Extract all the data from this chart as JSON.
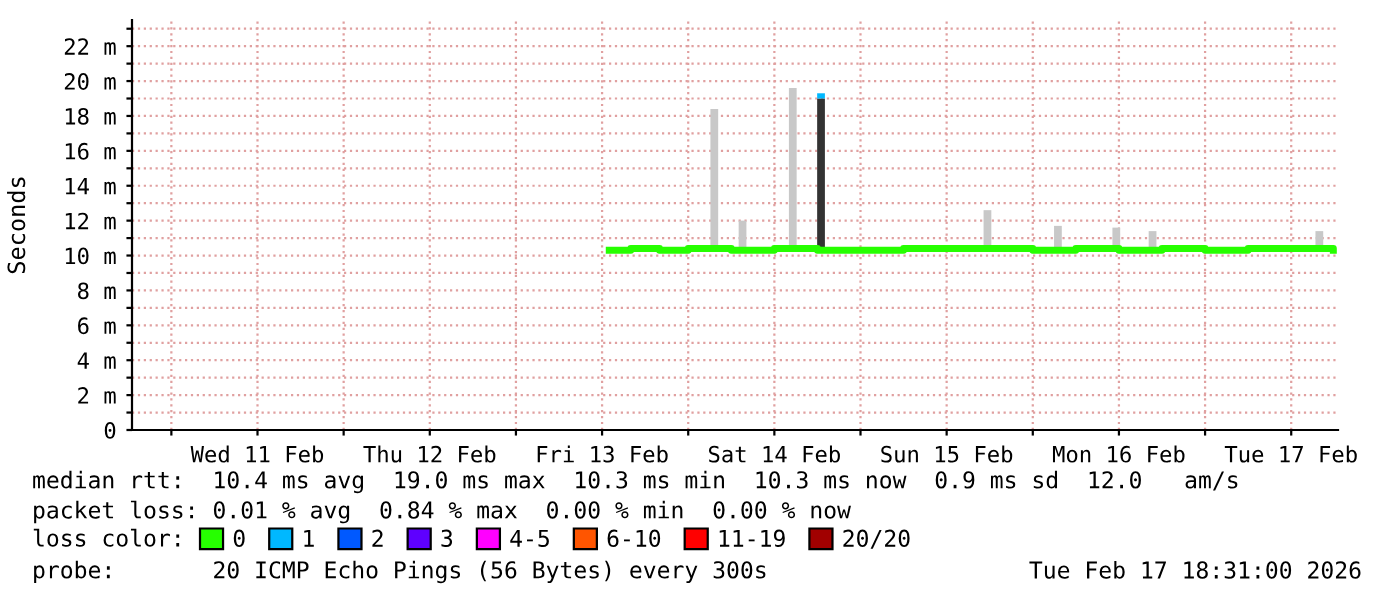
{
  "chart_data": {
    "type": "step",
    "ylabel": "Seconds",
    "legend_title": "loss color:",
    "legend": "bottom",
    "grid": true,
    "xlim": [
      "2026-02-10T18:31",
      "2026-02-17T18:31"
    ],
    "xticks": [
      {
        "value": "2026-02-11T00:00",
        "label": null
      },
      {
        "value": "2026-02-11T12:00",
        "label": "Wed 11 Feb"
      },
      {
        "value": "2026-02-12T00:00",
        "label": null
      },
      {
        "value": "2026-02-12T12:00",
        "label": "Thu 12 Feb"
      },
      {
        "value": "2026-02-13T00:00",
        "label": null
      },
      {
        "value": "2026-02-13T12:00",
        "label": "Fri 13 Feb"
      },
      {
        "value": "2026-02-14T00:00",
        "label": null
      },
      {
        "value": "2026-02-14T12:00",
        "label": "Sat 14 Feb"
      },
      {
        "value": "2026-02-15T00:00",
        "label": null
      },
      {
        "value": "2026-02-15T12:00",
        "label": "Sun 15 Feb"
      },
      {
        "value": "2026-02-16T00:00",
        "label": null
      },
      {
        "value": "2026-02-16T12:00",
        "label": "Mon 16 Feb"
      },
      {
        "value": "2026-02-17T00:00",
        "label": null
      },
      {
        "value": "2026-02-17T12:00",
        "label": "Tue 17 Feb"
      }
    ],
    "ylim": [
      0,
      23.5
    ],
    "yticks": [
      0,
      {
        "value": 1,
        "label": null
      },
      {
        "value": 2,
        "label": "2 m"
      },
      {
        "value": 3,
        "label": null
      },
      {
        "value": 4,
        "label": "4 m"
      },
      {
        "value": 5,
        "label": null
      },
      {
        "value": 6,
        "label": "6 m"
      },
      {
        "value": 7,
        "label": null
      },
      {
        "value": 8,
        "label": "8 m"
      },
      {
        "value": 9,
        "label": null
      },
      {
        "value": 10,
        "label": "10 m"
      },
      {
        "value": 11,
        "label": null
      },
      {
        "value": 12,
        "label": "12 m"
      },
      {
        "value": 13,
        "label": null
      },
      {
        "value": 14,
        "label": "14 m"
      },
      {
        "value": 15,
        "label": null
      },
      {
        "value": 16,
        "label": "16 m"
      },
      {
        "value": 17,
        "label": null
      },
      {
        "value": 18,
        "label": "18 m"
      },
      {
        "value": 19,
        "label": null
      },
      {
        "value": 20,
        "label": "20 m"
      },
      {
        "value": 21,
        "label": null
      },
      {
        "value": 22,
        "label": "22 m"
      },
      {
        "value": 23,
        "label": null
      }
    ],
    "series": [
      {
        "type": "bar",
        "color": "#c8c8c8",
        "x": [
          "2026-02-14T03:38",
          "2026-02-14T07:34",
          "2026-02-14T14:34",
          "2026-02-15T17:41",
          "2026-02-16T03:30",
          "2026-02-16T11:38",
          "2026-02-16T16:41",
          "2026-02-17T15:55"
        ],
        "base": [
          10.4,
          10.4,
          10.4,
          10.4,
          10.4,
          10.4,
          10.4,
          10.4
        ],
        "values": [
          8.0,
          1.6,
          9.2,
          2.2,
          1.3,
          1.2,
          1.0,
          1.0
        ]
      },
      {
        "type": "bar",
        "color": "#333333",
        "x": [
          "2026-02-14T18:30"
        ],
        "base": [
          10.4
        ],
        "values": [
          8.6
        ]
      },
      {
        "name": "0",
        "color": "#26ff00",
        "x": [
          "2026-02-13T13:00",
          "2026-02-13T16:00",
          "2026-02-13T20:00",
          "2026-02-14T00:00",
          "2026-02-14T06:00",
          "2026-02-14T12:00",
          "2026-02-14T18:00",
          "2026-02-15T00:00",
          "2026-02-15T06:00",
          "2026-02-15T12:00",
          "2026-02-15T18:00",
          "2026-02-16T00:00",
          "2026-02-16T06:00",
          "2026-02-16T12:00",
          "2026-02-16T18:00",
          "2026-02-17T00:00",
          "2026-02-17T06:00",
          "2026-02-17T12:00",
          "2026-02-17T17:52"
        ],
        "values": [
          10.3,
          10.4,
          10.3,
          10.4,
          10.3,
          10.4,
          10.3,
          10.3,
          10.4,
          10.4,
          10.4,
          10.3,
          10.4,
          10.3,
          10.4,
          10.3,
          10.4,
          10.4,
          10.3
        ]
      },
      {
        "type": "bar",
        "name": "1",
        "color": "#00b8ff",
        "x": [
          "2026-02-14T18:30"
        ],
        "base": [
          19.0
        ],
        "values": [
          0.3
        ]
      },
      {
        "type": "bar",
        "name": "2",
        "color": "#0059ff"
      },
      {
        "type": "bar",
        "name": "3",
        "color": "#5e00ff"
      },
      {
        "type": "bar",
        "name": "4-5",
        "color": "#ff00ff"
      },
      {
        "type": "bar",
        "name": "6-10",
        "color": "#ff5500"
      },
      {
        "type": "bar",
        "name": "11-19",
        "color": "#ff0000"
      },
      {
        "type": "bar",
        "name": "20/20",
        "color": "#a10000"
      }
    ],
    "annotations": [
      "median rtt:  10.4 ms avg  19.0 ms max  10.3 ms min  10.3 ms now  0.9 ms sd  12.0   am/s",
      "packet loss: 0.01 % avg  0.84 % max  0.00 % min  0.00 % now",
      "probe:       20 ICMP Echo Pings (56 Bytes) every 300s",
      "Tue Feb 17 18:31:00 2026"
    ]
  }
}
